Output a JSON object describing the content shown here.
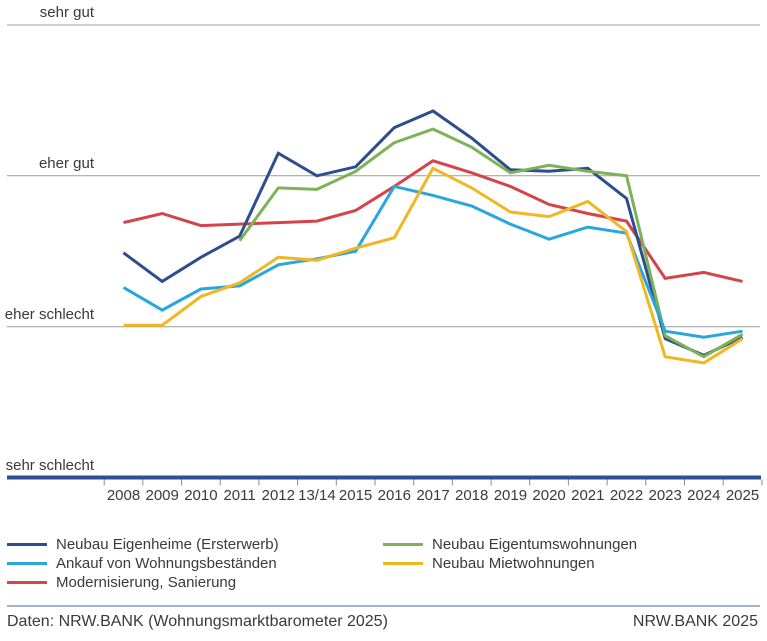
{
  "chart_data": {
    "type": "line",
    "title": "",
    "xlabel": "",
    "ylabel": "",
    "x_categories": [
      "2008",
      "2009",
      "2010",
      "2011",
      "2012",
      "13/14",
      "2015",
      "2016",
      "2017",
      "2018",
      "2019",
      "2020",
      "2021",
      "2022",
      "2023",
      "2024",
      "2025"
    ],
    "y_scale_note": "ordinal rating scale: 0 = sehr schlecht, 1 = eher schlecht, 2 = eher gut, 3 = sehr gut",
    "ylim": [
      0,
      3
    ],
    "grid": "horizontal",
    "legend_position": "bottom",
    "series": [
      {
        "name": "Neubau Eigenheime (Ersterwerb)",
        "color": "#2d4d8e",
        "values": [
          1.49,
          1.3,
          1.46,
          1.6,
          2.15,
          2.0,
          2.06,
          2.32,
          2.43,
          2.25,
          2.04,
          2.03,
          2.05,
          1.85,
          0.92,
          0.81,
          0.93
        ]
      },
      {
        "name": "Ankauf von Wohnungsbeständen",
        "color": "#29a7dc",
        "values": [
          1.26,
          1.11,
          1.25,
          1.27,
          1.41,
          1.45,
          1.5,
          1.93,
          1.87,
          1.8,
          1.68,
          1.58,
          1.66,
          1.62,
          0.97,
          0.93,
          0.97
        ]
      },
      {
        "name": "Modernisierung, Sanierung",
        "color": "#d5434b",
        "values": [
          1.69,
          1.75,
          1.67,
          1.68,
          1.69,
          1.7,
          1.77,
          1.93,
          2.1,
          2.02,
          1.93,
          1.81,
          1.75,
          1.7,
          1.32,
          1.36,
          1.3
        ]
      },
      {
        "name": "Neubau Eigentumswohnungen",
        "color": "#7eb257",
        "values": [
          null,
          null,
          null,
          1.57,
          1.92,
          1.91,
          2.03,
          2.22,
          2.31,
          2.19,
          2.02,
          2.07,
          2.03,
          2.0,
          0.94,
          0.8,
          0.95
        ]
      },
      {
        "name": "Neubau Mietwohnungen",
        "color": "#f1b722",
        "values": [
          1.01,
          1.01,
          1.2,
          1.29,
          1.46,
          1.44,
          1.52,
          1.59,
          2.05,
          1.92,
          1.76,
          1.73,
          1.83,
          1.63,
          0.8,
          0.76,
          0.92
        ]
      }
    ]
  },
  "y_axis": {
    "labels": [
      {
        "text": "sehr gut",
        "value": 3
      },
      {
        "text": "eher gut",
        "value": 2
      },
      {
        "text": "eher schlecht",
        "value": 1
      },
      {
        "text": "sehr schlecht",
        "value": 0
      }
    ]
  },
  "legend": {
    "columns": [
      [
        0,
        1,
        2
      ],
      [
        3,
        4
      ]
    ]
  },
  "colors": {
    "axis_line": "#2e5093",
    "gridline": "#9c9c9c",
    "tick": "#8f8f8f",
    "divider": "#a4b6ce",
    "text": "#3a3a3a"
  },
  "footer": {
    "source": "Daten: NRW.BANK (Wohnungsmarktbarometer 2025)",
    "brand": "NRW.BANK 2025"
  }
}
